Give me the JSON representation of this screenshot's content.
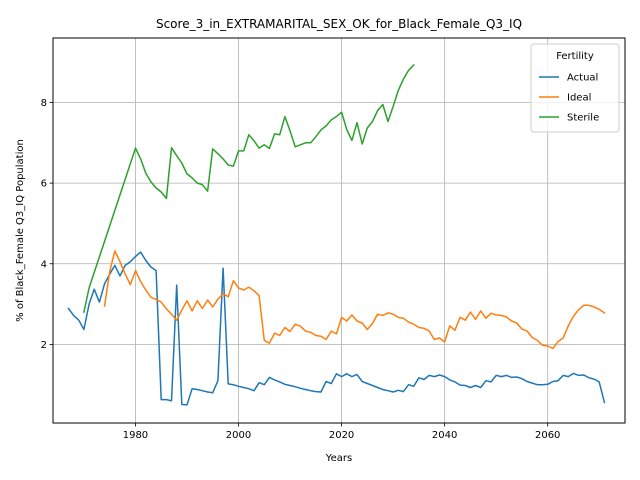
{
  "chart_data": {
    "type": "line",
    "title": "Score_3_in_EXTRAMARITAL_SEX_OK_for_Black_Female_Q3_IQ",
    "xlabel": "Years",
    "ylabel": "% of Black_Female Q3_IQ Population",
    "xlim": [
      1964,
      2075
    ],
    "ylim": [
      0.05,
      9.6
    ],
    "x_ticks": [
      1980,
      2000,
      2020,
      2040,
      2060
    ],
    "y_ticks": [
      2,
      4,
      6,
      8
    ],
    "grid": true,
    "legend": {
      "title": "Fertility",
      "position": "top-right"
    },
    "series": [
      {
        "name": "Actual",
        "color": "#1f77b4",
        "points": [
          [
            1967,
            2.89
          ],
          [
            1968,
            2.72
          ],
          [
            1969,
            2.6
          ],
          [
            1970,
            2.37
          ],
          [
            1971,
            3.0
          ],
          [
            1972,
            3.37
          ],
          [
            1973,
            3.05
          ],
          [
            1974,
            3.5
          ],
          [
            1975,
            3.74
          ],
          [
            1976,
            3.96
          ],
          [
            1977,
            3.7
          ],
          [
            1978,
            3.96
          ],
          [
            1979,
            4.05
          ],
          [
            1980,
            4.18
          ],
          [
            1981,
            4.29
          ],
          [
            1982,
            4.08
          ],
          [
            1983,
            3.92
          ],
          [
            1984,
            3.83
          ],
          [
            1985,
            0.63
          ],
          [
            1986,
            0.63
          ],
          [
            1987,
            0.6
          ],
          [
            1988,
            3.47
          ],
          [
            1989,
            0.51
          ],
          [
            1990,
            0.5
          ],
          [
            1991,
            0.9
          ],
          [
            1992,
            0.88
          ],
          [
            1993,
            0.85
          ],
          [
            1994,
            0.82
          ],
          [
            1995,
            0.8
          ],
          [
            1996,
            1.1
          ],
          [
            1997,
            3.89
          ],
          [
            1998,
            1.02
          ],
          [
            1999,
            1.0
          ],
          [
            2000,
            0.96
          ],
          [
            2001,
            0.93
          ],
          [
            2002,
            0.9
          ],
          [
            2003,
            0.85
          ],
          [
            2004,
            1.05
          ],
          [
            2005,
            1.0
          ],
          [
            2006,
            1.18
          ],
          [
            2007,
            1.12
          ],
          [
            2008,
            1.07
          ],
          [
            2009,
            1.01
          ],
          [
            2010,
            0.98
          ],
          [
            2011,
            0.95
          ],
          [
            2012,
            0.91
          ],
          [
            2013,
            0.88
          ],
          [
            2014,
            0.85
          ],
          [
            2015,
            0.83
          ],
          [
            2016,
            0.82
          ],
          [
            2017,
            1.08
          ],
          [
            2018,
            1.03
          ],
          [
            2019,
            1.27
          ],
          [
            2020,
            1.2
          ],
          [
            2021,
            1.27
          ],
          [
            2022,
            1.2
          ],
          [
            2023,
            1.25
          ],
          [
            2024,
            1.08
          ],
          [
            2025,
            1.03
          ],
          [
            2026,
            0.98
          ],
          [
            2027,
            0.93
          ],
          [
            2028,
            0.88
          ],
          [
            2029,
            0.85
          ],
          [
            2030,
            0.82
          ],
          [
            2031,
            0.86
          ],
          [
            2032,
            0.83
          ],
          [
            2033,
            1.0
          ],
          [
            2034,
            0.96
          ],
          [
            2035,
            1.17
          ],
          [
            2036,
            1.13
          ],
          [
            2037,
            1.23
          ],
          [
            2038,
            1.2
          ],
          [
            2039,
            1.24
          ],
          [
            2040,
            1.2
          ],
          [
            2041,
            1.12
          ],
          [
            2042,
            1.07
          ],
          [
            2043,
            0.99
          ],
          [
            2044,
            0.98
          ],
          [
            2045,
            0.93
          ],
          [
            2046,
            0.98
          ],
          [
            2047,
            0.93
          ],
          [
            2048,
            1.1
          ],
          [
            2049,
            1.07
          ],
          [
            2050,
            1.23
          ],
          [
            2051,
            1.2
          ],
          [
            2052,
            1.23
          ],
          [
            2053,
            1.18
          ],
          [
            2054,
            1.19
          ],
          [
            2055,
            1.15
          ],
          [
            2056,
            1.08
          ],
          [
            2057,
            1.04
          ],
          [
            2058,
            1.0
          ],
          [
            2059,
            1.0
          ],
          [
            2060,
            1.01
          ],
          [
            2061,
            1.08
          ],
          [
            2062,
            1.1
          ],
          [
            2063,
            1.23
          ],
          [
            2064,
            1.2
          ],
          [
            2065,
            1.28
          ],
          [
            2066,
            1.23
          ],
          [
            2067,
            1.24
          ],
          [
            2068,
            1.17
          ],
          [
            2069,
            1.14
          ],
          [
            2070,
            1.07
          ],
          [
            2071,
            0.56
          ]
        ]
      },
      {
        "name": "Ideal",
        "color": "#ff7f0e",
        "points": [
          [
            1974,
            2.95
          ],
          [
            1975,
            3.8
          ],
          [
            1976,
            4.32
          ],
          [
            1977,
            4.05
          ],
          [
            1978,
            3.75
          ],
          [
            1979,
            3.48
          ],
          [
            1980,
            3.83
          ],
          [
            1981,
            3.56
          ],
          [
            1982,
            3.35
          ],
          [
            1983,
            3.17
          ],
          [
            1984,
            3.11
          ],
          [
            1985,
            3.05
          ],
          [
            1986,
            2.88
          ],
          [
            1987,
            2.75
          ],
          [
            1988,
            2.6
          ],
          [
            1989,
            2.85
          ],
          [
            1990,
            3.08
          ],
          [
            1991,
            2.83
          ],
          [
            1992,
            3.08
          ],
          [
            1993,
            2.89
          ],
          [
            1994,
            3.1
          ],
          [
            1995,
            2.93
          ],
          [
            1996,
            3.12
          ],
          [
            1997,
            3.26
          ],
          [
            1998,
            3.18
          ],
          [
            1999,
            3.58
          ],
          [
            2000,
            3.4
          ],
          [
            2001,
            3.35
          ],
          [
            2002,
            3.42
          ],
          [
            2003,
            3.33
          ],
          [
            2004,
            3.21
          ],
          [
            2005,
            2.1
          ],
          [
            2006,
            2.03
          ],
          [
            2007,
            2.28
          ],
          [
            2008,
            2.22
          ],
          [
            2009,
            2.42
          ],
          [
            2010,
            2.32
          ],
          [
            2011,
            2.5
          ],
          [
            2012,
            2.45
          ],
          [
            2013,
            2.33
          ],
          [
            2014,
            2.3
          ],
          [
            2015,
            2.22
          ],
          [
            2016,
            2.2
          ],
          [
            2017,
            2.12
          ],
          [
            2018,
            2.33
          ],
          [
            2019,
            2.26
          ],
          [
            2020,
            2.67
          ],
          [
            2021,
            2.58
          ],
          [
            2022,
            2.73
          ],
          [
            2023,
            2.58
          ],
          [
            2024,
            2.53
          ],
          [
            2025,
            2.37
          ],
          [
            2026,
            2.52
          ],
          [
            2027,
            2.75
          ],
          [
            2028,
            2.72
          ],
          [
            2029,
            2.78
          ],
          [
            2030,
            2.75
          ],
          [
            2031,
            2.67
          ],
          [
            2032,
            2.65
          ],
          [
            2033,
            2.55
          ],
          [
            2034,
            2.5
          ],
          [
            2035,
            2.42
          ],
          [
            2036,
            2.4
          ],
          [
            2037,
            2.33
          ],
          [
            2038,
            2.12
          ],
          [
            2039,
            2.16
          ],
          [
            2040,
            2.06
          ],
          [
            2041,
            2.46
          ],
          [
            2042,
            2.35
          ],
          [
            2043,
            2.67
          ],
          [
            2044,
            2.6
          ],
          [
            2045,
            2.8
          ],
          [
            2046,
            2.62
          ],
          [
            2047,
            2.83
          ],
          [
            2048,
            2.65
          ],
          [
            2049,
            2.77
          ],
          [
            2050,
            2.73
          ],
          [
            2051,
            2.72
          ],
          [
            2052,
            2.68
          ],
          [
            2053,
            2.58
          ],
          [
            2054,
            2.53
          ],
          [
            2055,
            2.38
          ],
          [
            2056,
            2.33
          ],
          [
            2057,
            2.17
          ],
          [
            2058,
            2.1
          ],
          [
            2059,
            1.98
          ],
          [
            2060,
            1.96
          ],
          [
            2061,
            1.9
          ],
          [
            2062,
            2.07
          ],
          [
            2063,
            2.16
          ],
          [
            2064,
            2.46
          ],
          [
            2065,
            2.7
          ],
          [
            2066,
            2.86
          ],
          [
            2067,
            2.97
          ],
          [
            2068,
            2.97
          ],
          [
            2069,
            2.93
          ],
          [
            2070,
            2.87
          ],
          [
            2071,
            2.78
          ]
        ]
      },
      {
        "name": "Sterile",
        "color": "#2ca02c",
        "points": [
          [
            1970,
            2.8
          ],
          [
            1971,
            3.4
          ],
          [
            1980,
            6.87
          ],
          [
            1981,
            6.6
          ],
          [
            1982,
            6.25
          ],
          [
            1983,
            6.03
          ],
          [
            1984,
            5.88
          ],
          [
            1985,
            5.78
          ],
          [
            1986,
            5.62
          ],
          [
            1987,
            6.88
          ],
          [
            1988,
            6.68
          ],
          [
            1989,
            6.5
          ],
          [
            1990,
            6.23
          ],
          [
            1991,
            6.13
          ],
          [
            1992,
            6.0
          ],
          [
            1993,
            5.96
          ],
          [
            1994,
            5.8
          ],
          [
            1995,
            6.85
          ],
          [
            1996,
            6.73
          ],
          [
            1997,
            6.6
          ],
          [
            1998,
            6.45
          ],
          [
            1999,
            6.42
          ],
          [
            2000,
            6.8
          ],
          [
            2001,
            6.8
          ],
          [
            2002,
            7.2
          ],
          [
            2003,
            7.05
          ],
          [
            2004,
            6.87
          ],
          [
            2005,
            6.95
          ],
          [
            2006,
            6.86
          ],
          [
            2007,
            7.22
          ],
          [
            2008,
            7.2
          ],
          [
            2009,
            7.65
          ],
          [
            2010,
            7.3
          ],
          [
            2011,
            6.9
          ],
          [
            2012,
            6.95
          ],
          [
            2013,
            7.0
          ],
          [
            2014,
            7.0
          ],
          [
            2015,
            7.15
          ],
          [
            2016,
            7.32
          ],
          [
            2017,
            7.42
          ],
          [
            2018,
            7.57
          ],
          [
            2019,
            7.65
          ],
          [
            2020,
            7.76
          ],
          [
            2021,
            7.33
          ],
          [
            2022,
            7.06
          ],
          [
            2023,
            7.5
          ],
          [
            2024,
            6.97
          ],
          [
            2025,
            7.37
          ],
          [
            2026,
            7.53
          ],
          [
            2027,
            7.8
          ],
          [
            2028,
            7.95
          ],
          [
            2029,
            7.53
          ],
          [
            2030,
            7.9
          ],
          [
            2031,
            8.3
          ],
          [
            2032,
            8.58
          ],
          [
            2033,
            8.8
          ],
          [
            2034,
            8.93
          ]
        ]
      }
    ]
  }
}
